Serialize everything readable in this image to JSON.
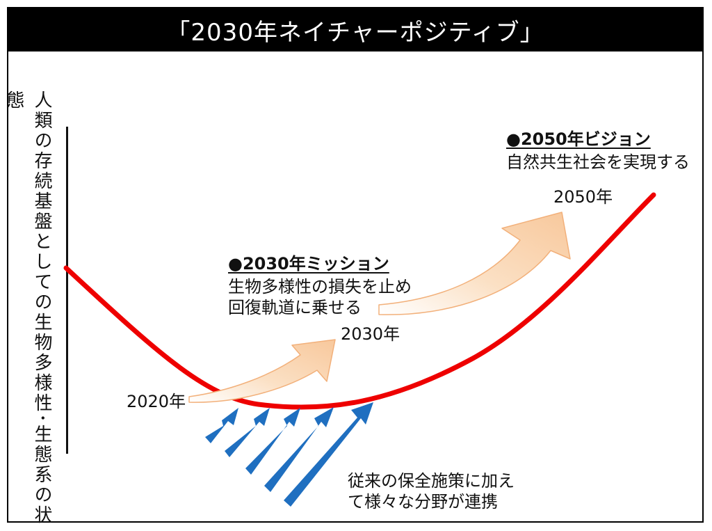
{
  "title": "「2030年ネイチャーポジティブ」",
  "y_axis_label": "人類の存続基盤としての生物多様性･生態系の状態",
  "years": {
    "y2020": "2020年",
    "y2030": "2030年",
    "y2050": "2050年"
  },
  "mission": {
    "heading": "●2030年ミッション",
    "line1": "生物多様性の損失を止め",
    "line2": "回復軌道に乗せる"
  },
  "vision": {
    "heading": "●2050年ビジョン",
    "line1": "自然共生社会を実現する"
  },
  "measures": {
    "line1": "従来の保全施策に加え",
    "line2": "て様々な分野が連携"
  },
  "colors": {
    "curve": "#ee0000",
    "arrow_fill": "#fbd9b5",
    "arrow_stroke": "#f2b07a",
    "blue_arrow": "#1f6fc0"
  }
}
